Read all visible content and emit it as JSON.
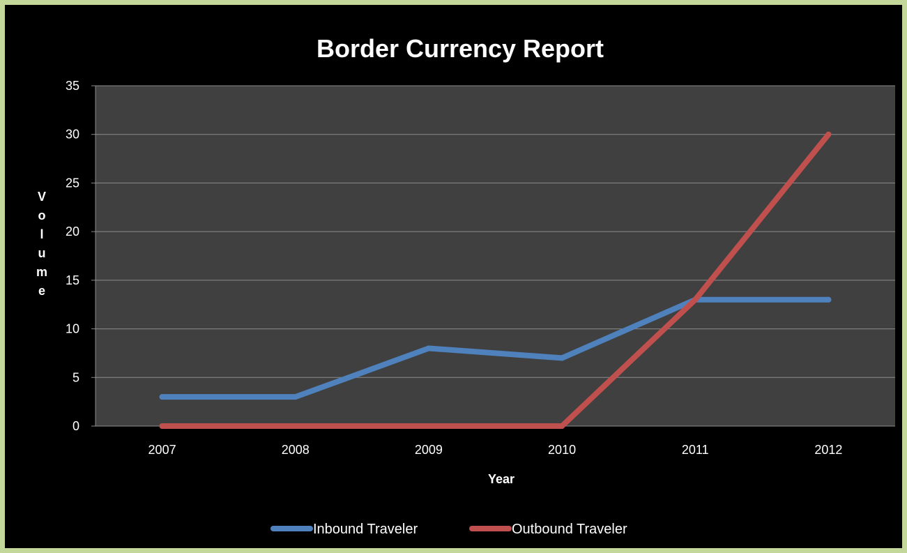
{
  "chart_data": {
    "type": "line",
    "title": "Border Currency Report",
    "xlabel": "Year",
    "ylabel": "Volume",
    "categories": [
      "2007",
      "2008",
      "2009",
      "2010",
      "2011",
      "2012"
    ],
    "ylim": [
      0,
      35
    ],
    "yticks": [
      0,
      5,
      10,
      15,
      20,
      25,
      30,
      35
    ],
    "grid": true,
    "legend_position": "bottom",
    "series": [
      {
        "name": "Inbound Traveler",
        "color": "#4f81bd",
        "values": [
          3,
          3,
          8,
          7,
          13,
          13
        ]
      },
      {
        "name": "Outbound Traveler",
        "color": "#c0504d",
        "values": [
          0,
          0,
          0,
          0,
          13,
          30
        ]
      }
    ],
    "colors": {
      "page_border": "#c4d79b",
      "background": "#000000",
      "plot_area": "#404040",
      "gridline": "#8c8c8c",
      "text": "#ffffff"
    }
  }
}
